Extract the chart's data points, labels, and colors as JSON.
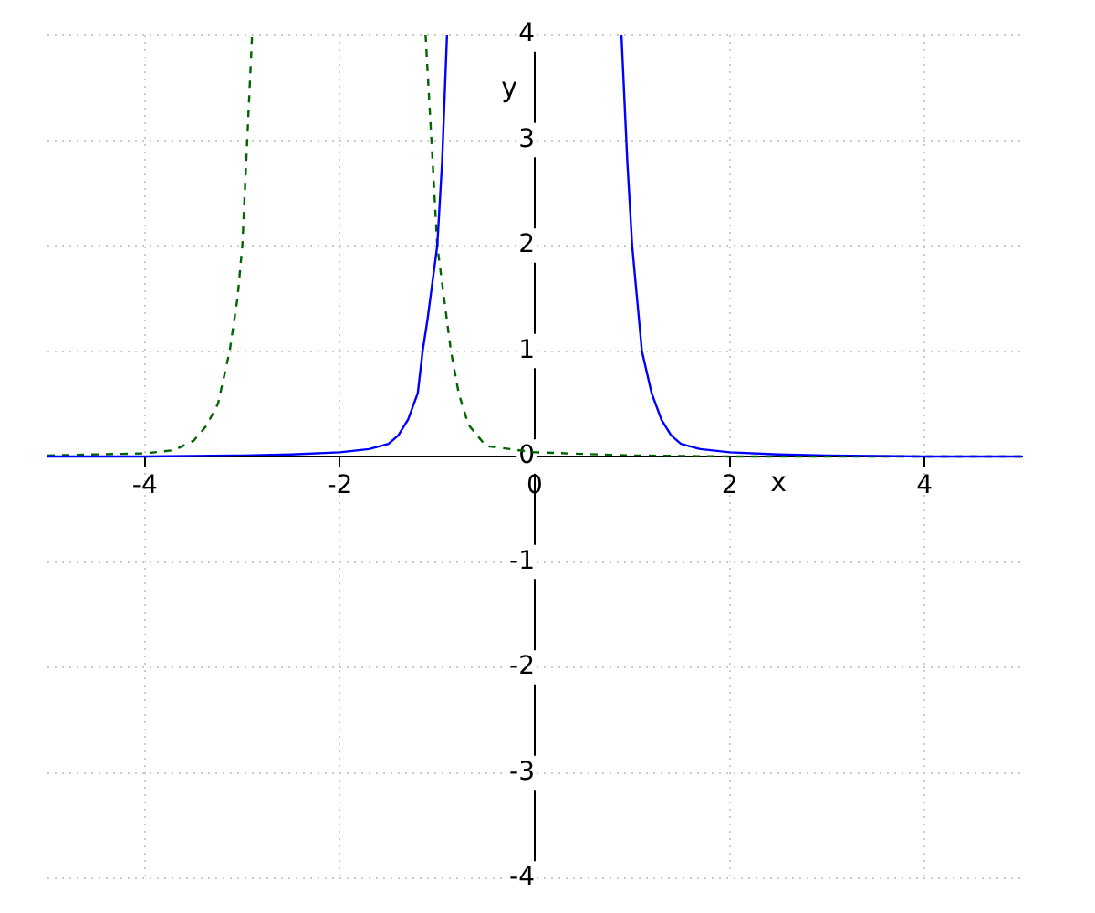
{
  "chart_data": {
    "type": "line",
    "xlabel": "x",
    "ylabel": "y",
    "xlim": [
      -5,
      5
    ],
    "ylim": [
      -4,
      4
    ],
    "xticks": [
      -4,
      -2,
      0,
      2,
      4
    ],
    "yticks": [
      -4,
      -3,
      -2,
      -1,
      0,
      1,
      2,
      3,
      4
    ],
    "grid": true,
    "legend": false,
    "marker": "none",
    "series": [
      {
        "color": "#0000ff",
        "line_style": "solid",
        "x": [
          -5,
          -4,
          -3,
          -2.5,
          -2,
          -1.7,
          -1.5,
          -1.4,
          -1.3,
          -1.2,
          -1.15,
          -1.1,
          -1.05,
          -1,
          -0.95,
          -0.9,
          0,
          0.89,
          0.95,
          1,
          1.05,
          1.1,
          1.2,
          1.3,
          1.4,
          1.5,
          1.7,
          2,
          2.5,
          3,
          4,
          5
        ],
        "values": [
          0,
          0,
          0.01,
          0.02,
          0.04,
          0.07,
          0.12,
          0.2,
          0.35,
          0.6,
          1,
          1.3,
          1.65,
          2,
          2.8,
          4,
          null,
          4,
          2.8,
          2,
          1.5,
          1,
          0.6,
          0.35,
          0.2,
          0.12,
          0.07,
          0.04,
          0.02,
          0.01,
          0,
          0
        ]
      },
      {
        "color": "#006400",
        "line_style": "dashed",
        "x": [
          -5,
          -4,
          -3.7,
          -3.5,
          -3.37,
          -3.25,
          -3.13,
          -3.05,
          -3,
          -2.95,
          -2.9,
          -2,
          -1.12,
          -1.06,
          -1,
          -0.93,
          -0.86,
          -0.78,
          -0.68,
          -0.5,
          0,
          1,
          2,
          5
        ],
        "values": [
          0.01,
          0.03,
          0.06,
          0.15,
          0.29,
          0.5,
          1,
          1.5,
          2,
          3,
          4,
          null,
          4,
          3,
          2,
          1.5,
          1,
          0.6,
          0.3,
          0.1,
          0.04,
          0.01,
          0,
          0
        ]
      }
    ]
  }
}
